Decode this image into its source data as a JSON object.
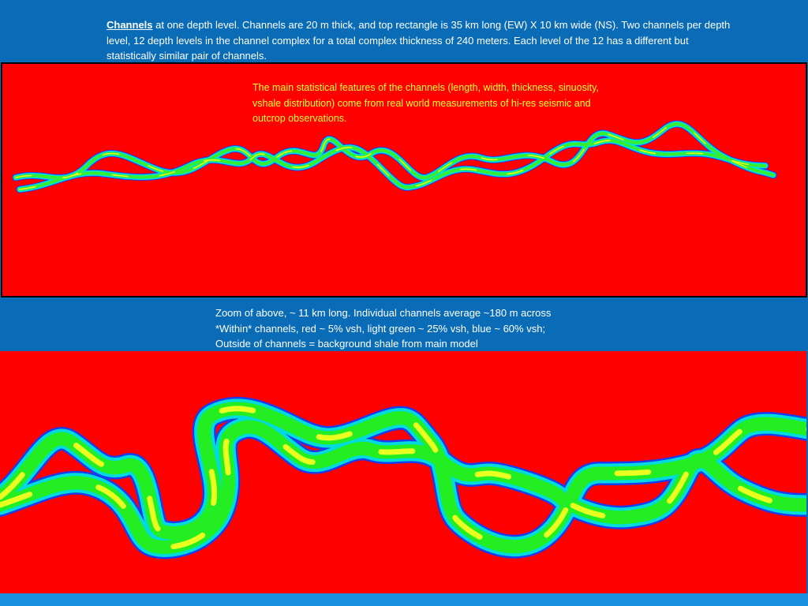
{
  "header": {
    "title": "Channels",
    "text": " at one depth level. Channels are 20 m thick, and top rectangle is 35 km long (EW) X 10 km wide (NS).  Two channels per depth level, 12 depth levels in the channel complex for a total complex thickness of 240 meters. Each level of the 12 has a different but statistically similar pair of channels."
  },
  "overlay_note": "The main statistical features of the channels (length, width, thickness, sinuosity, vshale distribution) come from real world measurements of hi-res seismic and outcrop observations.",
  "zoom_caption": [
    "Zoom of above, ~ 11 km long. Individual channels average ~180 m across",
    "*Within* channels, red ~ 5% vsh, light green ~ 25% vsh, blue ~ 60% vsh;",
    "Outside of channels = background shale from main model"
  ]
}
